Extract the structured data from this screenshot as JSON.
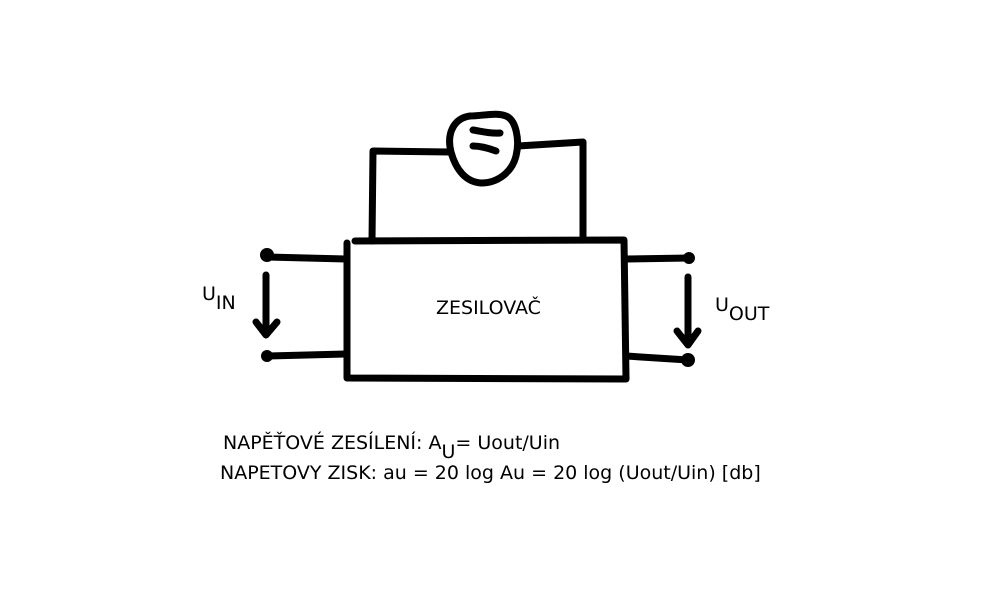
{
  "diagram": {
    "block_label": "ZESILOVAČ",
    "input_label": {
      "main": "U",
      "sub": "IN"
    },
    "output_label": {
      "main": "U",
      "sub": "OUT"
    },
    "gain_line": {
      "prefix": "NAPĚŤOVÉ ZESÍLENÍ: A",
      "sub": "U",
      "suffix": "=  Uout/Uin"
    },
    "gain_db_line": "NAPETOVY ZISK: au = 20 log Au = 20 log (Uout/Uin) [db]"
  }
}
